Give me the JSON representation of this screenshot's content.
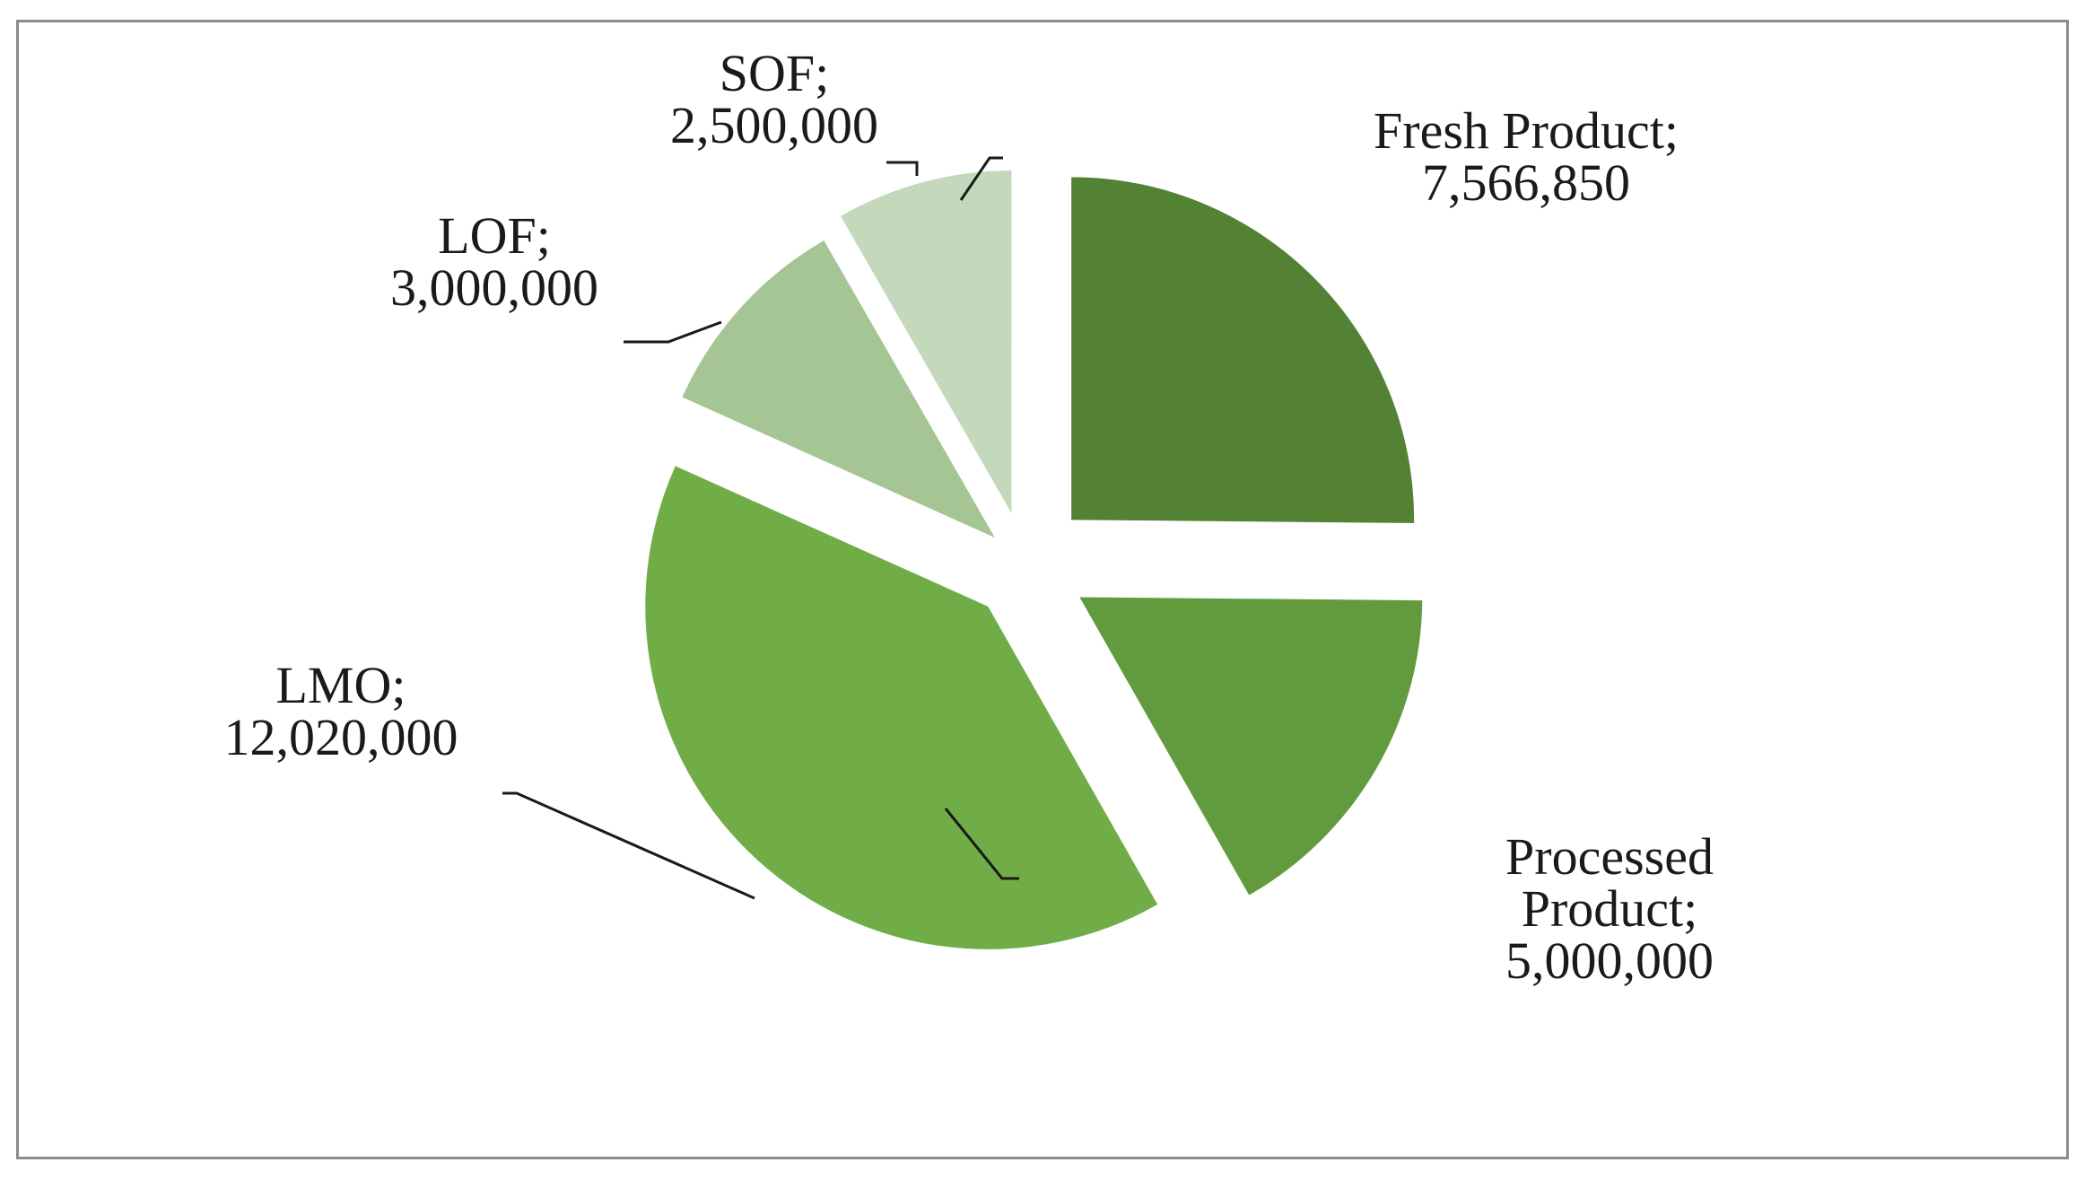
{
  "chart_data": {
    "type": "pie",
    "exploded": true,
    "slices": [
      {
        "name": "Fresh Product",
        "label_lines": [
          "Fresh Product;",
          "7,566,850"
        ],
        "value": 7566850,
        "color": "#548235"
      },
      {
        "name": "Processed Product",
        "label_lines": [
          "Processed",
          "Product;",
          "5,000,000"
        ],
        "value": 5000000,
        "color": "#629b3e"
      },
      {
        "name": "LMO",
        "label_lines": [
          "LMO;",
          "12,020,000"
        ],
        "value": 12020000,
        "color": "#70ad47"
      },
      {
        "name": "LOF",
        "label_lines": [
          "LOF;",
          "3,000,000"
        ],
        "value": 3000000,
        "color": "#a5c694"
      },
      {
        "name": "SOF",
        "label_lines": [
          "SOF;",
          "2,500,000"
        ],
        "value": 2500000,
        "color": "#c4d9bb"
      }
    ]
  }
}
